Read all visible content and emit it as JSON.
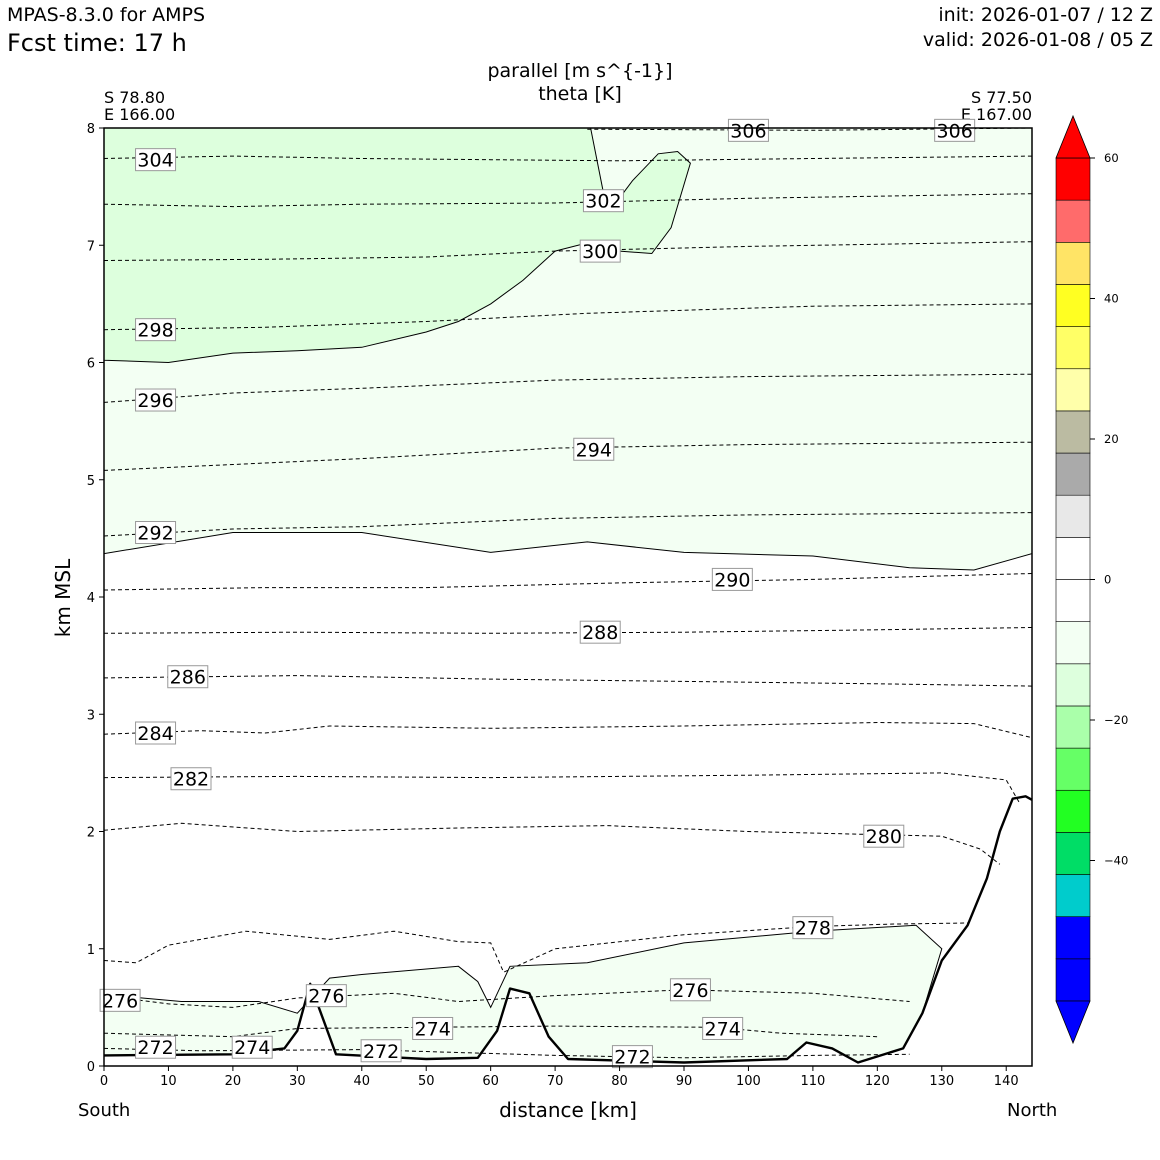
{
  "header": {
    "model": "MPAS-8.3.0 for AMPS",
    "fcst": "Fcst time:   17 h",
    "init": "init: 2026-01-07 / 12 Z",
    "valid": "valid: 2026-01-08 / 05 Z"
  },
  "chart_data": {
    "type": "contour",
    "title_lines": [
      "parallel [m s^{-1}]",
      "theta [K]"
    ],
    "xlabel": "distance [km]",
    "ylabel": "km MSL",
    "xlim": [
      0,
      144
    ],
    "ylim": [
      0,
      8
    ],
    "x_ticks": [
      0,
      10,
      20,
      30,
      40,
      50,
      60,
      70,
      80,
      90,
      100,
      110,
      120,
      130,
      140
    ],
    "y_ticks": [
      0,
      1,
      2,
      3,
      4,
      5,
      6,
      7,
      8
    ],
    "endpoints": {
      "left": {
        "lat": "S 78.80",
        "lon": "E 166.00",
        "direction": "South"
      },
      "right": {
        "lat": "S 77.50",
        "lon": "E 167.00",
        "direction": "North"
      }
    },
    "colorbar": {
      "ticks": [
        "60",
        "40",
        "20",
        "0",
        "−20",
        "−40"
      ],
      "tick_values": [
        60,
        40,
        20,
        0,
        -20,
        -40
      ],
      "range": [
        -60,
        60
      ],
      "colors_bottom_to_top": [
        "#0000ff",
        "#0000ff",
        "#00cccc",
        "#00dd66",
        "#22ff22",
        "#66ff66",
        "#aaffaa",
        "#ddffdd",
        "#f3fff3",
        "#ffffff",
        "#ffffff",
        "#e8e8e8",
        "#aaaaaa",
        "#bbbba2",
        "#ffffaa",
        "#ffff66",
        "#ffff22",
        "#ffe466",
        "#ff6b6b",
        "#ff0000"
      ],
      "under_color": "#0000ff",
      "over_color": "#ff0000"
    },
    "theta_contour_labels": [
      {
        "text": "304",
        "x": 8,
        "y": 7.73
      },
      {
        "text": "306",
        "x": 100,
        "y": 7.98
      },
      {
        "text": "306",
        "x": 132,
        "y": 7.98
      },
      {
        "text": "302",
        "x": 77.5,
        "y": 7.38
      },
      {
        "text": "300",
        "x": 77,
        "y": 6.95
      },
      {
        "text": "298",
        "x": 8,
        "y": 6.28
      },
      {
        "text": "296",
        "x": 8,
        "y": 5.68
      },
      {
        "text": "294",
        "x": 76,
        "y": 5.26
      },
      {
        "text": "292",
        "x": 8,
        "y": 4.55
      },
      {
        "text": "290",
        "x": 97.5,
        "y": 4.15
      },
      {
        "text": "288",
        "x": 77,
        "y": 3.7
      },
      {
        "text": "286",
        "x": 13,
        "y": 3.32
      },
      {
        "text": "284",
        "x": 8,
        "y": 2.84
      },
      {
        "text": "282",
        "x": 13.5,
        "y": 2.45
      },
      {
        "text": "280",
        "x": 121,
        "y": 1.96
      },
      {
        "text": "278",
        "x": 110,
        "y": 1.18
      },
      {
        "text": "276",
        "x": 2.5,
        "y": 0.56
      },
      {
        "text": "276",
        "x": 34.5,
        "y": 0.6
      },
      {
        "text": "276",
        "x": 91,
        "y": 0.65
      },
      {
        "text": "274",
        "x": 51,
        "y": 0.32
      },
      {
        "text": "274",
        "x": 96,
        "y": 0.32
      },
      {
        "text": "274",
        "x": 23,
        "y": 0.16
      },
      {
        "text": "272",
        "x": 8,
        "y": 0.16
      },
      {
        "text": "272",
        "x": 43,
        "y": 0.13
      },
      {
        "text": "272",
        "x": 82,
        "y": 0.08
      }
    ],
    "theta_contours": [
      {
        "level": 306,
        "points": [
          [
            75,
            7.99
          ],
          [
            110,
            7.98
          ],
          [
            144,
            8.0
          ]
        ]
      },
      {
        "level": 304,
        "points": [
          [
            0,
            7.74
          ],
          [
            20,
            7.76
          ],
          [
            40,
            7.74
          ],
          [
            60,
            7.73
          ],
          [
            80,
            7.72
          ],
          [
            110,
            7.74
          ],
          [
            144,
            7.76
          ]
        ]
      },
      {
        "level": 302,
        "points": [
          [
            0,
            7.35
          ],
          [
            20,
            7.33
          ],
          [
            40,
            7.35
          ],
          [
            70,
            7.36
          ],
          [
            100,
            7.4
          ],
          [
            144,
            7.44
          ]
        ]
      },
      {
        "level": 300,
        "points": [
          [
            0,
            6.87
          ],
          [
            25,
            6.88
          ],
          [
            50,
            6.9
          ],
          [
            70,
            6.95
          ],
          [
            100,
            6.99
          ],
          [
            144,
            7.03
          ]
        ]
      },
      {
        "level": 298,
        "points": [
          [
            0,
            6.28
          ],
          [
            25,
            6.3
          ],
          [
            50,
            6.35
          ],
          [
            75,
            6.42
          ],
          [
            110,
            6.48
          ],
          [
            144,
            6.5
          ]
        ]
      },
      {
        "level": 296,
        "points": [
          [
            0,
            5.66
          ],
          [
            20,
            5.74
          ],
          [
            40,
            5.78
          ],
          [
            70,
            5.85
          ],
          [
            100,
            5.88
          ],
          [
            144,
            5.9
          ]
        ]
      },
      {
        "level": 294,
        "points": [
          [
            0,
            5.08
          ],
          [
            20,
            5.13
          ],
          [
            40,
            5.18
          ],
          [
            70,
            5.27
          ],
          [
            100,
            5.3
          ],
          [
            144,
            5.32
          ]
        ]
      },
      {
        "level": 292,
        "points": [
          [
            0,
            4.52
          ],
          [
            20,
            4.58
          ],
          [
            40,
            4.6
          ],
          [
            70,
            4.67
          ],
          [
            100,
            4.7
          ],
          [
            144,
            4.72
          ]
        ]
      },
      {
        "level": 290,
        "points": [
          [
            0,
            4.06
          ],
          [
            25,
            4.08
          ],
          [
            50,
            4.08
          ],
          [
            80,
            4.12
          ],
          [
            110,
            4.15
          ],
          [
            144,
            4.2
          ]
        ]
      },
      {
        "level": 288,
        "points": [
          [
            0,
            3.69
          ],
          [
            30,
            3.7
          ],
          [
            60,
            3.69
          ],
          [
            90,
            3.7
          ],
          [
            120,
            3.72
          ],
          [
            144,
            3.74
          ]
        ]
      },
      {
        "level": 286,
        "points": [
          [
            0,
            3.31
          ],
          [
            30,
            3.33
          ],
          [
            60,
            3.3
          ],
          [
            90,
            3.28
          ],
          [
            120,
            3.26
          ],
          [
            144,
            3.24
          ]
        ]
      },
      {
        "level": 284,
        "points": [
          [
            0,
            2.83
          ],
          [
            15,
            2.86
          ],
          [
            25,
            2.84
          ],
          [
            35,
            2.9
          ],
          [
            60,
            2.88
          ],
          [
            90,
            2.9
          ],
          [
            120,
            2.93
          ],
          [
            135,
            2.92
          ],
          [
            144,
            2.8
          ]
        ]
      },
      {
        "level": 282,
        "points": [
          [
            0,
            2.46
          ],
          [
            30,
            2.47
          ],
          [
            60,
            2.46
          ],
          [
            100,
            2.48
          ],
          [
            130,
            2.5
          ],
          [
            140,
            2.44
          ],
          [
            142,
            2.25
          ]
        ]
      },
      {
        "level": 280,
        "points": [
          [
            0,
            2.01
          ],
          [
            12,
            2.07
          ],
          [
            30,
            2.0
          ],
          [
            55,
            2.03
          ],
          [
            78,
            2.05
          ],
          [
            100,
            2.0
          ],
          [
            130,
            1.96
          ],
          [
            136,
            1.85
          ],
          [
            139,
            1.72
          ]
        ]
      },
      {
        "level": 278,
        "points": [
          [
            0,
            0.9
          ],
          [
            5,
            0.88
          ],
          [
            10,
            1.03
          ],
          [
            22,
            1.15
          ],
          [
            35,
            1.08
          ],
          [
            45,
            1.15
          ],
          [
            55,
            1.06
          ],
          [
            60,
            1.05
          ],
          [
            62,
            0.8
          ],
          [
            70,
            1.0
          ],
          [
            90,
            1.12
          ],
          [
            110,
            1.19
          ],
          [
            122,
            1.21
          ],
          [
            134,
            1.22
          ]
        ]
      },
      {
        "level": 276,
        "points": [
          [
            0,
            0.6
          ],
          [
            10,
            0.53
          ],
          [
            20,
            0.5
          ],
          [
            30,
            0.58
          ],
          [
            45,
            0.62
          ],
          [
            55,
            0.55
          ],
          [
            70,
            0.6
          ],
          [
            90,
            0.65
          ],
          [
            110,
            0.62
          ],
          [
            125,
            0.55
          ]
        ]
      },
      {
        "level": 274,
        "points": [
          [
            0,
            0.28
          ],
          [
            20,
            0.25
          ],
          [
            30,
            0.32
          ],
          [
            50,
            0.33
          ],
          [
            70,
            0.34
          ],
          [
            95,
            0.33
          ],
          [
            105,
            0.28
          ],
          [
            120,
            0.25
          ]
        ]
      },
      {
        "level": 272,
        "points": [
          [
            0,
            0.15
          ],
          [
            15,
            0.13
          ],
          [
            40,
            0.14
          ],
          [
            70,
            0.09
          ],
          [
            90,
            0.07
          ],
          [
            110,
            0.09
          ],
          [
            125,
            0.1
          ]
        ]
      }
    ],
    "terrain_profile": [
      [
        0,
        0.09
      ],
      [
        20,
        0.1
      ],
      [
        28,
        0.15
      ],
      [
        30,
        0.3
      ],
      [
        32,
        0.7
      ],
      [
        34,
        0.4
      ],
      [
        36,
        0.1
      ],
      [
        50,
        0.06
      ],
      [
        58,
        0.07
      ],
      [
        61,
        0.3
      ],
      [
        63,
        0.66
      ],
      [
        66,
        0.62
      ],
      [
        69,
        0.25
      ],
      [
        72,
        0.06
      ],
      [
        90,
        0.03
      ],
      [
        106,
        0.06
      ],
      [
        109,
        0.2
      ],
      [
        113,
        0.15
      ],
      [
        117,
        0.03
      ],
      [
        124,
        0.15
      ],
      [
        127,
        0.45
      ],
      [
        130,
        0.9
      ],
      [
        134,
        1.2
      ],
      [
        137,
        1.6
      ],
      [
        139,
        2.0
      ],
      [
        141,
        2.28
      ],
      [
        143,
        2.3
      ],
      [
        144,
        2.27
      ]
    ],
    "parallel_wind_regions": [
      {
        "class": "-10 to -5",
        "outline": [
          [
            0,
            6.02
          ],
          [
            10,
            6.0
          ],
          [
            20,
            6.08
          ],
          [
            30,
            6.1
          ],
          [
            40,
            6.13
          ],
          [
            50,
            6.26
          ],
          [
            55,
            6.35
          ],
          [
            60,
            6.5
          ],
          [
            65,
            6.7
          ],
          [
            70,
            6.95
          ],
          [
            75,
            7.02
          ],
          [
            80,
            6.95
          ],
          [
            85,
            6.93
          ],
          [
            88,
            7.15
          ],
          [
            91,
            7.7
          ],
          [
            89,
            7.8
          ],
          [
            86,
            7.78
          ],
          [
            82,
            7.55
          ],
          [
            79,
            7.33
          ],
          [
            77.5,
            7.45
          ],
          [
            75.5,
            8.0
          ],
          [
            0,
            8.0
          ]
        ]
      },
      {
        "class": "-5 to 0",
        "outline": [
          [
            0,
            4.37
          ],
          [
            20,
            4.55
          ],
          [
            40,
            4.55
          ],
          [
            60,
            4.38
          ],
          [
            75,
            4.47
          ],
          [
            90,
            4.38
          ],
          [
            110,
            4.35
          ],
          [
            125,
            4.25
          ],
          [
            135,
            4.23
          ],
          [
            144,
            4.37
          ],
          [
            144,
            8.0
          ],
          [
            0,
            8.0
          ]
        ]
      },
      {
        "class": "-5 to 0",
        "outline": [
          [
            0,
            0.61
          ],
          [
            12,
            0.55
          ],
          [
            24,
            0.55
          ],
          [
            30,
            0.45
          ],
          [
            35,
            0.75
          ],
          [
            40,
            0.78
          ],
          [
            55,
            0.85
          ],
          [
            58,
            0.72
          ],
          [
            60,
            0.5
          ],
          [
            63,
            0.85
          ],
          [
            75,
            0.88
          ],
          [
            90,
            1.05
          ],
          [
            110,
            1.15
          ],
          [
            126,
            1.2
          ],
          [
            130,
            1.0
          ],
          [
            127,
            0.45
          ],
          [
            124,
            0.15
          ],
          [
            117,
            0.03
          ],
          [
            113,
            0.15
          ],
          [
            109,
            0.2
          ],
          [
            106,
            0.06
          ],
          [
            90,
            0.03
          ],
          [
            72,
            0.06
          ],
          [
            69,
            0.25
          ],
          [
            66,
            0.62
          ],
          [
            63,
            0.66
          ],
          [
            61,
            0.3
          ],
          [
            58,
            0.07
          ],
          [
            50,
            0.06
          ],
          [
            36,
            0.1
          ],
          [
            34,
            0.4
          ],
          [
            32,
            0.7
          ],
          [
            30,
            0.3
          ],
          [
            28,
            0.15
          ],
          [
            20,
            0.1
          ],
          [
            0,
            0.09
          ]
        ]
      }
    ]
  }
}
